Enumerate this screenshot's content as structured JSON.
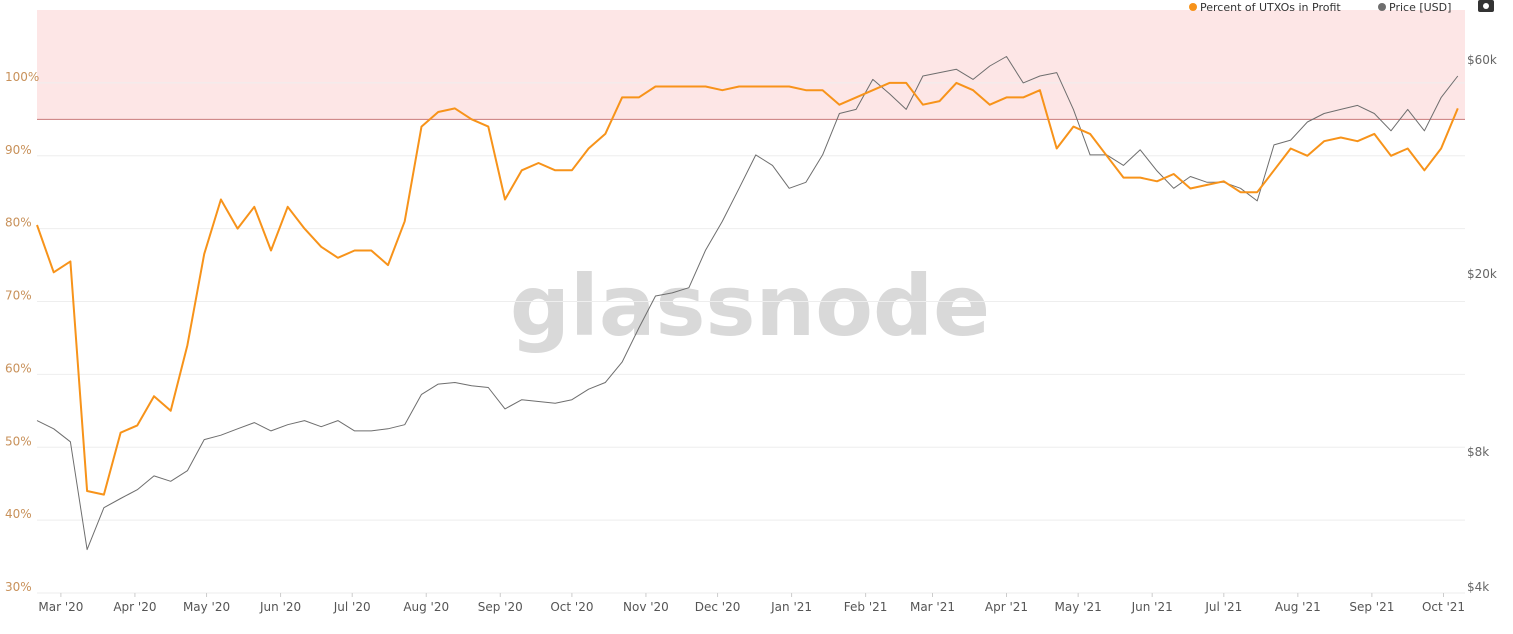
{
  "chart_data": {
    "type": "line",
    "watermark": "glassnode",
    "x": [
      0,
      7,
      14,
      21,
      28,
      35,
      42,
      49,
      56,
      63,
      70,
      77,
      84,
      91,
      98,
      105,
      112,
      119,
      126,
      133,
      140,
      147,
      154,
      161,
      168,
      175,
      182,
      189,
      196,
      203,
      210,
      217,
      224,
      231,
      238,
      245,
      252,
      259,
      266,
      273,
      280,
      287,
      294,
      301,
      308,
      315,
      322,
      329,
      336,
      343,
      350,
      357,
      364,
      371,
      378,
      385,
      392,
      399,
      406,
      413,
      420,
      427,
      434,
      441,
      448,
      455,
      462,
      469,
      476,
      483,
      490,
      497,
      504,
      511,
      518,
      525,
      532,
      539,
      546,
      553,
      560,
      567,
      574,
      581,
      588,
      595
    ],
    "xlim": [
      0,
      598
    ],
    "xticks": [
      {
        "value": 10,
        "label": "Mar '20"
      },
      {
        "value": 41,
        "label": "Apr '20"
      },
      {
        "value": 71,
        "label": "May '20"
      },
      {
        "value": 102,
        "label": "Jun '20"
      },
      {
        "value": 132,
        "label": "Jul '20"
      },
      {
        "value": 163,
        "label": "Aug '20"
      },
      {
        "value": 194,
        "label": "Sep '20"
      },
      {
        "value": 224,
        "label": "Oct '20"
      },
      {
        "value": 255,
        "label": "Nov '20"
      },
      {
        "value": 285,
        "label": "Dec '20"
      },
      {
        "value": 316,
        "label": "Jan '21"
      },
      {
        "value": 347,
        "label": "Feb '21"
      },
      {
        "value": 375,
        "label": "Mar '21"
      },
      {
        "value": 406,
        "label": "Apr '21"
      },
      {
        "value": 436,
        "label": "May '21"
      },
      {
        "value": 467,
        "label": "Jun '21"
      },
      {
        "value": 497,
        "label": "Jul '21"
      },
      {
        "value": 528,
        "label": "Aug '21"
      },
      {
        "value": 559,
        "label": "Sep '21"
      },
      {
        "value": 589,
        "label": "Oct '21"
      }
    ],
    "ylim": [
      30,
      110
    ],
    "yticks": [
      {
        "value": 30,
        "label": "30%"
      },
      {
        "value": 40,
        "label": "40%"
      },
      {
        "value": 50,
        "label": "50%"
      },
      {
        "value": 60,
        "label": "60%"
      },
      {
        "value": 70,
        "label": "70%"
      },
      {
        "value": 80,
        "label": "80%"
      },
      {
        "value": 90,
        "label": "90%"
      },
      {
        "value": 100,
        "label": "100%"
      }
    ],
    "y2lim": [
      4000,
      80000
    ],
    "y2scale": "log",
    "y2ticks": [
      {
        "value": 4000,
        "label": "$4k"
      },
      {
        "value": 8000,
        "label": "$8k"
      },
      {
        "value": 20000,
        "label": "$20k"
      },
      {
        "value": 60000,
        "label": "$60k"
      }
    ],
    "highlight_from": 95,
    "grid": true,
    "legend": "top-right",
    "series": [
      {
        "name": "Percent of UTXOs in Profit",
        "color": "#f7931a",
        "values": [
          80.5,
          74,
          75.5,
          44,
          43.5,
          52,
          53,
          57,
          55,
          64,
          76.5,
          84,
          80,
          83,
          77,
          83,
          80,
          77.5,
          76,
          77,
          77,
          75,
          81,
          94,
          96,
          96.5,
          95,
          94,
          84,
          88,
          89,
          88,
          88,
          91,
          93,
          98,
          98,
          99.5,
          99.5,
          99.5,
          99.5,
          99,
          99.5,
          99.5,
          99.5,
          99.5,
          99,
          99,
          97,
          98,
          99,
          100,
          100,
          97,
          97.5,
          100,
          99,
          97,
          98,
          98,
          99,
          91,
          94,
          93,
          90,
          87,
          87,
          86.5,
          87.5,
          85.5,
          86,
          86.5,
          85,
          85,
          88,
          91,
          90,
          92,
          92.5,
          92,
          93,
          90,
          91,
          88,
          91,
          96.5
        ]
      },
      {
        "name": "Price [USD]",
        "color": "#6e6e6e",
        "axis": "y2",
        "values": [
          9700,
          9300,
          8700,
          5000,
          6200,
          6500,
          6800,
          7300,
          7100,
          7500,
          8800,
          9000,
          9300,
          9600,
          9200,
          9500,
          9700,
          9400,
          9700,
          9200,
          9200,
          9300,
          9500,
          11100,
          11700,
          11800,
          11600,
          11500,
          10300,
          10800,
          10700,
          10600,
          10800,
          11400,
          11800,
          13100,
          15600,
          18400,
          18700,
          19200,
          23300,
          27000,
          32000,
          38000,
          36000,
          32000,
          33000,
          38000,
          47000,
          48000,
          56000,
          52000,
          48000,
          57000,
          58000,
          59000,
          56000,
          60000,
          63000,
          55000,
          57000,
          58000,
          48000,
          38000,
          38000,
          36000,
          39000,
          35000,
          32000,
          34000,
          33000,
          33000,
          32000,
          30000,
          40000,
          41000,
          45000,
          47000,
          48000,
          49000,
          47000,
          43000,
          48000,
          43000,
          51000,
          57000
        ]
      }
    ]
  }
}
